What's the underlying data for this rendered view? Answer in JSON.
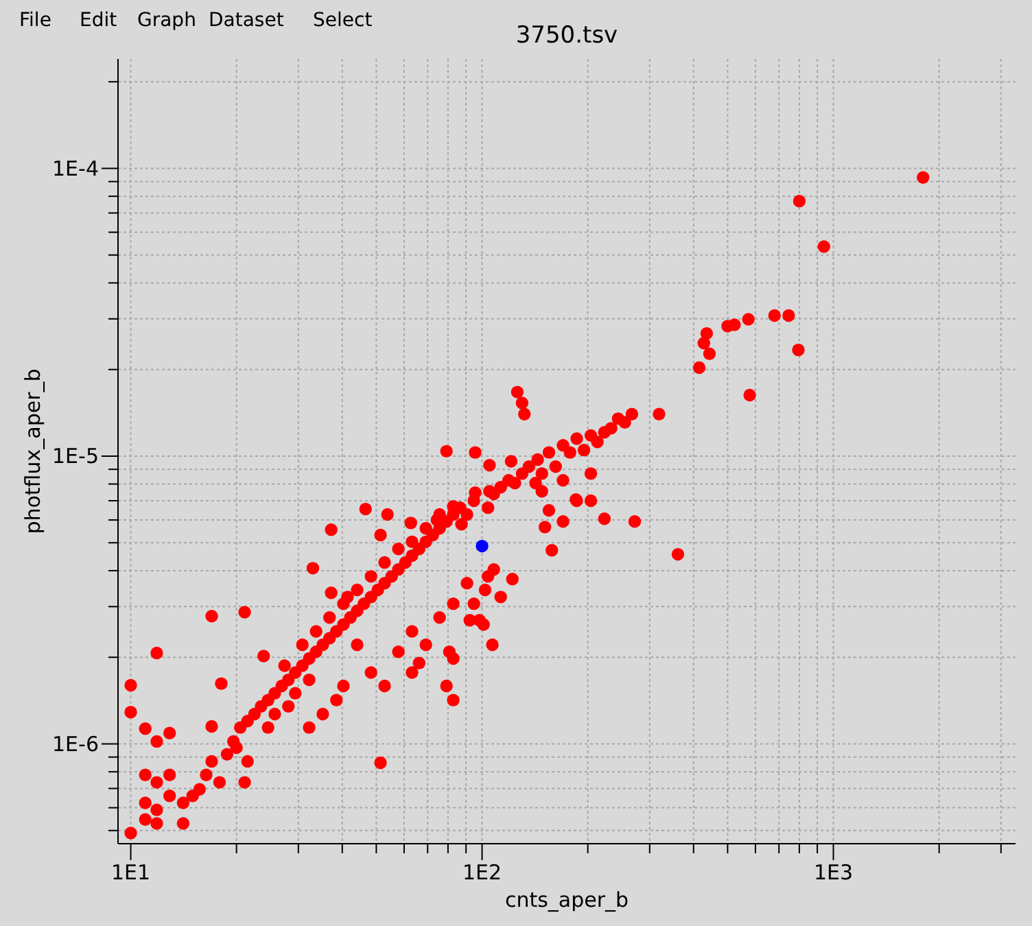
{
  "chart_data": {
    "type": "scatter",
    "title": "3750.tsv",
    "xlabel": "cnts_aper_b",
    "ylabel": "photflux_aper_b",
    "annotations": [
      "File",
      "Edit",
      "Graph",
      "Dataset",
      "Select"
    ],
    "log": "xy",
    "grid": true,
    "marker": "circle",
    "xlim": [
      9.2,
      3300
    ],
    "ylim": [
      4.5e-07,
      0.00024
    ],
    "xticks": [
      {
        "value": 10,
        "label": "1E1"
      },
      {
        "value": 20,
        "label": null
      },
      {
        "value": 30,
        "label": null
      },
      {
        "value": 40,
        "label": null
      },
      {
        "value": 50,
        "label": null
      },
      {
        "value": 60,
        "label": null
      },
      {
        "value": 70,
        "label": null
      },
      {
        "value": 80,
        "label": null
      },
      {
        "value": 90,
        "label": null
      },
      {
        "value": 100,
        "label": "1E2"
      },
      {
        "value": 200,
        "label": null
      },
      {
        "value": 300,
        "label": null
      },
      {
        "value": 400,
        "label": null
      },
      {
        "value": 500,
        "label": null
      },
      {
        "value": 600,
        "label": null
      },
      {
        "value": 700,
        "label": null
      },
      {
        "value": 800,
        "label": null
      },
      {
        "value": 900,
        "label": null
      },
      {
        "value": 1000,
        "label": "1E3"
      },
      {
        "value": 2000,
        "label": null
      },
      {
        "value": 3000,
        "label": null
      }
    ],
    "yticks": [
      {
        "value": 5e-07,
        "label": null
      },
      {
        "value": 6e-07,
        "label": null
      },
      {
        "value": 7e-07,
        "label": null
      },
      {
        "value": 8e-07,
        "label": null
      },
      {
        "value": 9e-07,
        "label": null
      },
      {
        "value": 1e-06,
        "label": "1E-6"
      },
      {
        "value": 2e-06,
        "label": null
      },
      {
        "value": 3e-06,
        "label": null
      },
      {
        "value": 4e-06,
        "label": null
      },
      {
        "value": 5e-06,
        "label": null
      },
      {
        "value": 6e-06,
        "label": null
      },
      {
        "value": 7e-06,
        "label": null
      },
      {
        "value": 8e-06,
        "label": null
      },
      {
        "value": 9e-06,
        "label": null
      },
      {
        "value": 1e-05,
        "label": "1E-5"
      },
      {
        "value": 2e-05,
        "label": null
      },
      {
        "value": 3e-05,
        "label": null
      },
      {
        "value": 4e-05,
        "label": null
      },
      {
        "value": 5e-05,
        "label": null
      },
      {
        "value": 6e-05,
        "label": null
      },
      {
        "value": 7e-05,
        "label": null
      },
      {
        "value": 8e-05,
        "label": null
      },
      {
        "value": 9e-05,
        "label": null
      },
      {
        "value": 0.0001,
        "label": "1E-4"
      },
      {
        "value": 0.0002,
        "label": null
      }
    ],
    "series": [
      {
        "color": "#ff0000",
        "x": [
          1800,
          800,
          940,
          795,
          578,
          746,
          680,
          573,
          523,
          500,
          436,
          428,
          444,
          415,
          361,
          272,
          319,
          126,
          130,
          132,
          10,
          10,
          10,
          11.86,
          17,
          21.1,
          11,
          11.86,
          12.9,
          18.1,
          23.9,
          27.4,
          51.4,
          33,
          37.2,
          51.4,
          37.2,
          41.4,
          17,
          11,
          11.86,
          11,
          11.86,
          11,
          11.86,
          12.9,
          12.9,
          14.1,
          14.1,
          15,
          15.7,
          16.4,
          17,
          17.9,
          18.8,
          20,
          21.5,
          21.1,
          19.6,
          20.5,
          21.5,
          22.5,
          23.5,
          24.6,
          24.6,
          25.7,
          26.9,
          25.7,
          28.1,
          28.1,
          29.4,
          29.4,
          30.8,
          30.8,
          32.2,
          32.2,
          33.7,
          33.7,
          35.2,
          36.8,
          36.8,
          38.5,
          40.3,
          40.3,
          42.2,
          44.1,
          44.1,
          46.1,
          48.3,
          48.3,
          50.5,
          52.8,
          52.8,
          55.3,
          57.8,
          57.8,
          60.5,
          63.2,
          63.2,
          66.2,
          69.2,
          69.2,
          72.4,
          75.7,
          75.7,
          79.2,
          82.8,
          86.6,
          90.6,
          94.8,
          104,
          108,
          113,
          119,
          124,
          130,
          136,
          142,
          144,
          148,
          155,
          162,
          170,
          170,
          178,
          186,
          195,
          204,
          213,
          223,
          233,
          244,
          255,
          267,
          204,
          223,
          104,
          108,
          90.6,
          82.8,
          75.7,
          63.2,
          69.2,
          57.8,
          48.3,
          44.1,
          40.3,
          38.5,
          35.2,
          32.2,
          52.8,
          63.2,
          82.8,
          79.2,
          82.8,
          94.8,
          101,
          107,
          113,
          155,
          148,
          170,
          186,
          204,
          46.6,
          53.8,
          62.7,
          74.4,
          87.4,
          79.2,
          95.6,
          105,
          82.8,
          121,
          95.6,
          105,
          185,
          158,
          122,
          102,
          92.3,
          98.3,
          80.7,
          66.2,
          151
        ],
        "values": [
          9.3e-05,
          7.7e-05,
          5.35e-05,
          2.34e-05,
          1.63e-05,
          3.08e-05,
          3.08e-05,
          2.99e-05,
          2.86e-05,
          2.83e-05,
          2.67e-05,
          2.47e-05,
          2.27e-05,
          2.03e-05,
          4.56e-06,
          5.93e-06,
          1.4e-05,
          1.67e-05,
          1.53e-05,
          1.4e-05,
          1.6e-06,
          1.29e-06,
          4.9e-07,
          2.07e-06,
          2.78e-06,
          2.87e-06,
          1.13e-06,
          1.02e-06,
          1.09e-06,
          1.62e-06,
          2.02e-06,
          1.87e-06,
          8.6e-07,
          4.08e-06,
          5.55e-06,
          5.32e-06,
          3.35e-06,
          3.24e-06,
          1.15e-06,
          7.8e-07,
          7.35e-07,
          6.24e-07,
          5.9e-07,
          5.46e-07,
          5.29e-07,
          7.8e-07,
          6.6e-07,
          6.24e-07,
          5.29e-07,
          6.6e-07,
          6.95e-07,
          7.8e-07,
          8.7e-07,
          7.35e-07,
          9.2e-07,
          9.7e-07,
          8.7e-07,
          7.35e-07,
          1.02e-06,
          1.14e-06,
          1.2e-06,
          1.27e-06,
          1.35e-06,
          1.42e-06,
          1.14e-06,
          1.5e-06,
          1.59e-06,
          1.27e-06,
          1.67e-06,
          1.35e-06,
          1.77e-06,
          1.5e-06,
          1.87e-06,
          2.21e-06,
          1.98e-06,
          1.67e-06,
          2.09e-06,
          2.46e-06,
          2.21e-06,
          2.33e-06,
          2.75e-06,
          2.46e-06,
          2.6e-06,
          3.07e-06,
          2.75e-06,
          2.9e-06,
          3.43e-06,
          3.07e-06,
          3.24e-06,
          3.82e-06,
          3.43e-06,
          3.62e-06,
          4.27e-06,
          3.82e-06,
          4.04e-06,
          4.76e-06,
          4.27e-06,
          4.51e-06,
          5.04e-06,
          4.76e-06,
          5.04e-06,
          5.61e-06,
          5.32e-06,
          5.61e-06,
          6.27e-06,
          5.93e-06,
          6.27e-06,
          6.62e-06,
          6.27e-06,
          7e-06,
          6.62e-06,
          7.39e-06,
          7.8e-06,
          8.24e-06,
          8.06e-06,
          8.7e-06,
          9.2e-06,
          8.06e-06,
          9.73e-06,
          8.7e-06,
          1.03e-05,
          9.2e-06,
          8.24e-06,
          1.09e-05,
          1.03e-05,
          1.15e-05,
          1.05e-05,
          1.18e-05,
          1.12e-05,
          1.21e-05,
          1.25e-05,
          1.35e-05,
          1.31e-05,
          1.4e-05,
          7e-06,
          6.06e-06,
          3.82e-06,
          4.04e-06,
          3.62e-06,
          3.07e-06,
          2.75e-06,
          2.46e-06,
          2.21e-06,
          2.09e-06,
          1.77e-06,
          2.21e-06,
          1.59e-06,
          1.42e-06,
          1.27e-06,
          1.14e-06,
          1.59e-06,
          1.77e-06,
          1.98e-06,
          1.59e-06,
          1.42e-06,
          3.07e-06,
          2.6e-06,
          2.21e-06,
          3.24e-06,
          6.48e-06,
          7.55e-06,
          5.93e-06,
          7e-06,
          8.7e-06,
          6.55e-06,
          6.27e-06,
          5.86e-06,
          6e-06,
          5.8e-06,
          1.04e-05,
          1.03e-05,
          9.3e-06,
          6.69e-06,
          9.6e-06,
          7.47e-06,
          7.55e-06,
          7.07e-06,
          4.71e-06,
          3.74e-06,
          3.43e-06,
          2.69e-06,
          2.69e-06,
          2.09e-06,
          1.91e-06,
          5.67e-06
        ]
      },
      {
        "color": "#0000ff",
        "x": [
          100
        ],
        "values": [
          4.87e-06
        ]
      }
    ]
  }
}
